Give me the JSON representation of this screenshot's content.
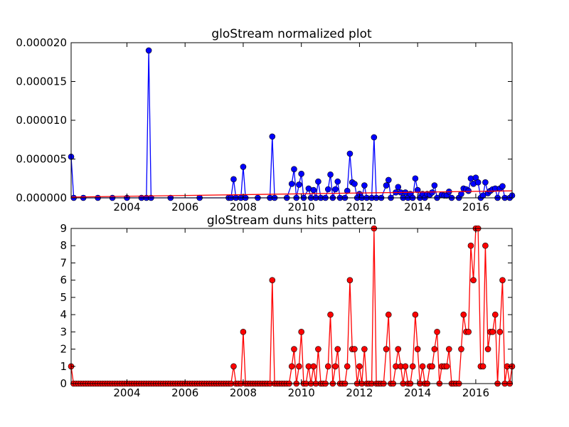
{
  "chart_data": [
    {
      "type": "line",
      "title": "gloStream normalized plot",
      "xlabel": "",
      "ylabel": "",
      "xlim": [
        2002.08,
        2017.25
      ],
      "ylim": [
        0,
        2e-05
      ],
      "x_ticks": [
        2004,
        2006,
        2008,
        2010,
        2012,
        2014,
        2016
      ],
      "y_ticks": [
        "0.000000",
        "0.000005",
        "0.000010",
        "0.000015",
        "0.000020"
      ],
      "grid": false,
      "series": [
        {
          "color": "#0000ff",
          "marker": "circle",
          "points": [
            [
              2002.08,
              5.3e-06
            ],
            [
              2002.17,
              0
            ],
            [
              2002.5,
              0
            ],
            [
              2003.0,
              0
            ],
            [
              2003.5,
              0
            ],
            [
              2004.0,
              0
            ],
            [
              2004.5,
              0
            ],
            [
              2004.67,
              0
            ],
            [
              2004.75,
              1.9e-05
            ],
            [
              2004.83,
              0
            ],
            [
              2005.5,
              0
            ],
            [
              2006.5,
              0
            ],
            [
              2007.5,
              0
            ],
            [
              2007.58,
              0
            ],
            [
              2007.67,
              2.4e-06
            ],
            [
              2007.75,
              0
            ],
            [
              2007.92,
              0
            ],
            [
              2008.0,
              4e-06
            ],
            [
              2008.08,
              0
            ],
            [
              2008.5,
              0
            ],
            [
              2008.92,
              0
            ],
            [
              2009.0,
              7.9e-06
            ],
            [
              2009.08,
              0
            ],
            [
              2009.5,
              0
            ],
            [
              2009.67,
              1.8e-06
            ],
            [
              2009.75,
              3.7e-06
            ],
            [
              2009.83,
              0
            ],
            [
              2009.92,
              1.7e-06
            ],
            [
              2010.0,
              3.1e-06
            ],
            [
              2010.08,
              0
            ],
            [
              2010.25,
              1.2e-06
            ],
            [
              2010.33,
              0
            ],
            [
              2010.42,
              1e-06
            ],
            [
              2010.5,
              0
            ],
            [
              2010.58,
              2.1e-06
            ],
            [
              2010.67,
              0
            ],
            [
              2010.83,
              0
            ],
            [
              2010.92,
              1.1e-06
            ],
            [
              2011.0,
              3e-06
            ],
            [
              2011.08,
              0
            ],
            [
              2011.17,
              1.1e-06
            ],
            [
              2011.25,
              2.1e-06
            ],
            [
              2011.33,
              0
            ],
            [
              2011.5,
              0
            ],
            [
              2011.58,
              9e-07
            ],
            [
              2011.67,
              5.7e-06
            ],
            [
              2011.75,
              2e-06
            ],
            [
              2011.83,
              1.8e-06
            ],
            [
              2011.92,
              0
            ],
            [
              2012.0,
              5e-07
            ],
            [
              2012.08,
              0
            ],
            [
              2012.17,
              1.6e-06
            ],
            [
              2012.25,
              0
            ],
            [
              2012.42,
              0
            ],
            [
              2012.5,
              7.8e-06
            ],
            [
              2012.58,
              0
            ],
            [
              2012.75,
              0
            ],
            [
              2012.92,
              1.6e-06
            ],
            [
              2013.0,
              2.3e-06
            ],
            [
              2013.08,
              0
            ],
            [
              2013.25,
              7e-07
            ],
            [
              2013.33,
              1.4e-06
            ],
            [
              2013.42,
              7e-07
            ],
            [
              2013.5,
              0
            ],
            [
              2013.58,
              7e-07
            ],
            [
              2013.67,
              0
            ],
            [
              2013.75,
              5e-07
            ],
            [
              2013.83,
              0
            ],
            [
              2013.92,
              2.5e-06
            ],
            [
              2014.0,
              1e-06
            ],
            [
              2014.08,
              0
            ],
            [
              2014.17,
              5e-07
            ],
            [
              2014.25,
              0
            ],
            [
              2014.33,
              5e-07
            ],
            [
              2014.42,
              4e-07
            ],
            [
              2014.5,
              7e-07
            ],
            [
              2014.58,
              1.6e-06
            ],
            [
              2014.67,
              0
            ],
            [
              2014.83,
              4e-07
            ],
            [
              2014.92,
              3e-07
            ],
            [
              2015.0,
              3e-07
            ],
            [
              2015.08,
              8e-07
            ],
            [
              2015.17,
              0
            ],
            [
              2015.42,
              0
            ],
            [
              2015.5,
              5e-07
            ],
            [
              2015.58,
              1.2e-06
            ],
            [
              2015.67,
              1.1e-06
            ],
            [
              2015.75,
              9e-07
            ],
            [
              2015.83,
              2.5e-06
            ],
            [
              2015.92,
              1.8e-06
            ],
            [
              2016.0,
              2.6e-06
            ],
            [
              2016.08,
              2e-06
            ],
            [
              2016.17,
              0
            ],
            [
              2016.25,
              3e-07
            ],
            [
              2016.33,
              2e-06
            ],
            [
              2016.42,
              6e-07
            ],
            [
              2016.5,
              9e-07
            ],
            [
              2016.58,
              1.1e-06
            ],
            [
              2016.67,
              1.2e-06
            ],
            [
              2016.75,
              0
            ],
            [
              2016.83,
              1.2e-06
            ],
            [
              2016.92,
              1.5e-06
            ],
            [
              2017.0,
              0
            ],
            [
              2017.17,
              0
            ],
            [
              2017.25,
              3e-07
            ]
          ]
        },
        {
          "color": "#ff0000",
          "marker": "none",
          "points": [
            [
              2002.08,
              1e-07
            ],
            [
              2017.25,
              9e-07
            ]
          ]
        }
      ]
    },
    {
      "type": "line",
      "title": "gloStream duns hits pattern",
      "xlabel": "",
      "ylabel": "",
      "xlim": [
        2002.08,
        2017.25
      ],
      "ylim": [
        0,
        9
      ],
      "x_ticks": [
        2004,
        2006,
        2008,
        2010,
        2012,
        2014,
        2016
      ],
      "y_ticks": [
        0,
        1,
        2,
        3,
        4,
        5,
        6,
        7,
        8,
        9
      ],
      "grid": false,
      "series": [
        {
          "color": "#ff0000",
          "marker": "circle",
          "points": [
            [
              2002.08,
              1
            ],
            [
              2007.58,
              0
            ],
            [
              2007.67,
              1
            ],
            [
              2007.75,
              0
            ],
            [
              2007.92,
              0
            ],
            [
              2008.0,
              3
            ],
            [
              2008.08,
              0
            ],
            [
              2008.92,
              0
            ],
            [
              2009.0,
              6
            ],
            [
              2009.08,
              0
            ],
            [
              2009.58,
              0
            ],
            [
              2009.67,
              1
            ],
            [
              2009.75,
              2
            ],
            [
              2009.83,
              0
            ],
            [
              2009.92,
              1
            ],
            [
              2010.0,
              3
            ],
            [
              2010.08,
              0
            ],
            [
              2010.25,
              1
            ],
            [
              2010.33,
              0
            ],
            [
              2010.42,
              1
            ],
            [
              2010.5,
              0
            ],
            [
              2010.58,
              2
            ],
            [
              2010.67,
              0
            ],
            [
              2010.83,
              0
            ],
            [
              2010.92,
              1
            ],
            [
              2011.0,
              4
            ],
            [
              2011.08,
              0
            ],
            [
              2011.17,
              1
            ],
            [
              2011.25,
              2
            ],
            [
              2011.33,
              0
            ],
            [
              2011.5,
              0
            ],
            [
              2011.58,
              1
            ],
            [
              2011.67,
              6
            ],
            [
              2011.75,
              2
            ],
            [
              2011.83,
              2
            ],
            [
              2011.92,
              0
            ],
            [
              2012.0,
              1
            ],
            [
              2012.08,
              0
            ],
            [
              2012.17,
              2
            ],
            [
              2012.25,
              0
            ],
            [
              2012.42,
              0
            ],
            [
              2012.5,
              9
            ],
            [
              2012.58,
              0
            ],
            [
              2012.83,
              0
            ],
            [
              2012.92,
              2
            ],
            [
              2013.0,
              4
            ],
            [
              2013.08,
              0
            ],
            [
              2013.25,
              1
            ],
            [
              2013.33,
              2
            ],
            [
              2013.42,
              1
            ],
            [
              2013.5,
              0
            ],
            [
              2013.58,
              1
            ],
            [
              2013.67,
              0
            ],
            [
              2013.75,
              0
            ],
            [
              2013.83,
              1
            ],
            [
              2013.92,
              4
            ],
            [
              2014.0,
              2
            ],
            [
              2014.08,
              0
            ],
            [
              2014.17,
              1
            ],
            [
              2014.25,
              0
            ],
            [
              2014.33,
              0
            ],
            [
              2014.42,
              1
            ],
            [
              2014.5,
              1
            ],
            [
              2014.58,
              2
            ],
            [
              2014.67,
              3
            ],
            [
              2014.75,
              0
            ],
            [
              2014.83,
              1
            ],
            [
              2014.92,
              1
            ],
            [
              2015.0,
              1
            ],
            [
              2015.08,
              2
            ],
            [
              2015.17,
              0
            ],
            [
              2015.42,
              0
            ],
            [
              2015.5,
              2
            ],
            [
              2015.58,
              4
            ],
            [
              2015.67,
              3
            ],
            [
              2015.75,
              3
            ],
            [
              2015.83,
              8
            ],
            [
              2015.92,
              6
            ],
            [
              2016.0,
              9
            ],
            [
              2016.08,
              9
            ],
            [
              2016.17,
              1
            ],
            [
              2016.25,
              1
            ],
            [
              2016.33,
              8
            ],
            [
              2016.42,
              2
            ],
            [
              2016.5,
              3
            ],
            [
              2016.58,
              3
            ],
            [
              2016.67,
              4
            ],
            [
              2016.75,
              0
            ],
            [
              2016.83,
              3
            ],
            [
              2016.92,
              6
            ],
            [
              2017.0,
              0
            ],
            [
              2017.08,
              1
            ],
            [
              2017.17,
              0
            ],
            [
              2017.25,
              1
            ]
          ],
          "zero_fill_step": 0.0833
        }
      ]
    }
  ]
}
